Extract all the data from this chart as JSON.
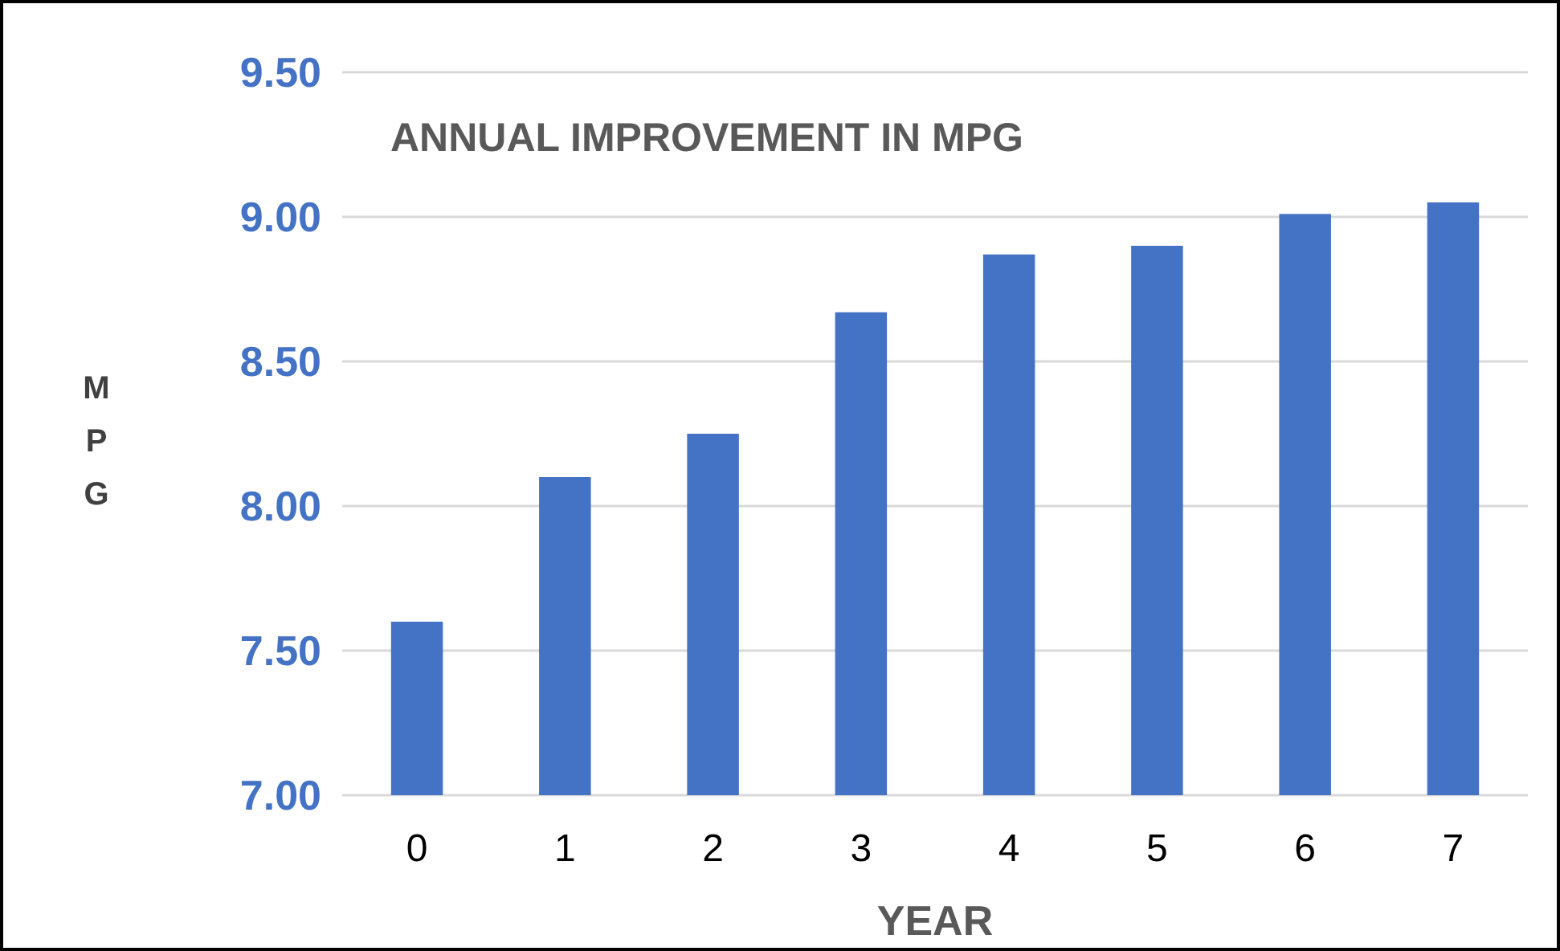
{
  "chart_data": {
    "type": "bar",
    "title": "ANNUAL IMPROVEMENT IN MPG",
    "xlabel": "YEAR",
    "ylabel": "MPG",
    "categories": [
      "0",
      "1",
      "2",
      "3",
      "4",
      "5",
      "6",
      "7"
    ],
    "values": [
      7.6,
      8.1,
      8.25,
      8.67,
      8.87,
      8.9,
      9.01,
      9.05
    ],
    "color": "#4472c4",
    "ylim": [
      7,
      9.5
    ],
    "yticks": [
      {
        "value": 7,
        "label": "7.00"
      },
      {
        "value": 7.5,
        "label": "7.50"
      },
      {
        "value": 8,
        "label": "8.00"
      },
      {
        "value": 8.5,
        "label": "8.50"
      },
      {
        "value": 9,
        "label": "9.00"
      },
      {
        "value": 9.5,
        "label": "9.50"
      }
    ],
    "grid": "y"
  }
}
